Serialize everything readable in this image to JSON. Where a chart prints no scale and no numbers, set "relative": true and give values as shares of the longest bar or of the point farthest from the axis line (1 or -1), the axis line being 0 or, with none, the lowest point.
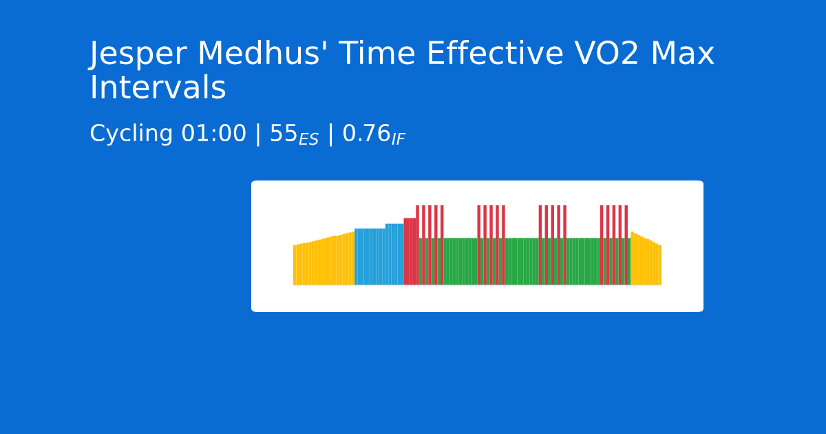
{
  "chart_data": {
    "type": "bar",
    "relative": true,
    "title": "Jesper Medhus' Time Effective VO2 Max Intervals",
    "subtitle": "Cycling 01:00 | 55$_{ES}$ | 0.76$_{IF}$",
    "categories": [
      null,
      null,
      null,
      null,
      null,
      null,
      null,
      null,
      null,
      null,
      null,
      null,
      null,
      null,
      null,
      null,
      null,
      null,
      null,
      null,
      null,
      null,
      null,
      null,
      null,
      null,
      null,
      null,
      null,
      null,
      null,
      null,
      null,
      null,
      null,
      null,
      null,
      null,
      null,
      null,
      null,
      null,
      null,
      null,
      null,
      null,
      null,
      null,
      null,
      null,
      null,
      null,
      null,
      null,
      null,
      null,
      null,
      null,
      null,
      null,
      null,
      null,
      null,
      null,
      null,
      null,
      null,
      null,
      null,
      null,
      null,
      null,
      null,
      null,
      null,
      null,
      null,
      null,
      null,
      null,
      null,
      null,
      null,
      null,
      null,
      null,
      null,
      null,
      null,
      null,
      null,
      null,
      null,
      null,
      null,
      null,
      null,
      null,
      null,
      null,
      null,
      null,
      null,
      null,
      null,
      null,
      null,
      null,
      null,
      null,
      null,
      null,
      null,
      null,
      null,
      null,
      null,
      null,
      null,
      null
    ],
    "values": [
      0.5,
      0.51,
      0.52,
      0.53,
      0.53,
      0.54,
      0.55,
      0.56,
      0.57,
      0.58,
      0.59,
      0.6,
      0.61,
      0.62,
      0.62,
      0.63,
      0.64,
      0.65,
      0.66,
      0.67,
      0.71,
      0.71,
      0.71,
      0.71,
      0.71,
      0.71,
      0.71,
      0.71,
      0.71,
      0.71,
      0.77,
      0.77,
      0.77,
      0.77,
      0.77,
      0.77,
      0.84,
      0.84,
      0.84,
      0.84,
      1,
      0.59,
      1,
      0.59,
      1,
      0.59,
      1,
      0.59,
      1,
      0.59,
      0.59,
      0.59,
      0.59,
      0.59,
      0.59,
      0.59,
      0.59,
      0.59,
      0.59,
      0.59,
      1,
      0.59,
      1,
      0.59,
      1,
      0.59,
      1,
      0.59,
      1,
      0.59,
      0.59,
      0.59,
      0.59,
      0.59,
      0.59,
      0.59,
      0.59,
      0.59,
      0.59,
      0.59,
      1,
      0.59,
      1,
      0.59,
      1,
      0.59,
      1,
      0.59,
      1,
      0.59,
      0.59,
      0.59,
      0.59,
      0.59,
      0.59,
      0.59,
      0.59,
      0.59,
      0.59,
      0.59,
      1,
      0.59,
      1,
      0.59,
      1,
      0.59,
      1,
      0.59,
      1,
      0.59,
      0.67,
      0.65,
      0.63,
      0.61,
      0.59,
      0.58,
      0.56,
      0.54,
      0.52,
      0.5
    ],
    "colors": [
      "#ffc107",
      "#ffc107",
      "#ffc107",
      "#ffc107",
      "#ffc107",
      "#ffc107",
      "#ffc107",
      "#ffc107",
      "#ffc107",
      "#ffc107",
      "#ffc107",
      "#ffc107",
      "#ffc107",
      "#ffc107",
      "#ffc107",
      "#ffc107",
      "#ffc107",
      "#ffc107",
      "#ffc107",
      "#ffc107",
      "#26a0da",
      "#26a0da",
      "#26a0da",
      "#26a0da",
      "#26a0da",
      "#26a0da",
      "#26a0da",
      "#26a0da",
      "#26a0da",
      "#26a0da",
      "#26a0da",
      "#26a0da",
      "#26a0da",
      "#26a0da",
      "#26a0da",
      "#26a0da",
      "#dc3545",
      "#dc3545",
      "#dc3545",
      "#dc3545",
      "#dc3545",
      "#28a745",
      "#dc3545",
      "#28a745",
      "#dc3545",
      "#28a745",
      "#dc3545",
      "#28a745",
      "#dc3545",
      "#28a745",
      "#28a745",
      "#28a745",
      "#28a745",
      "#28a745",
      "#28a745",
      "#28a745",
      "#28a745",
      "#28a745",
      "#28a745",
      "#28a745",
      "#dc3545",
      "#28a745",
      "#dc3545",
      "#28a745",
      "#dc3545",
      "#28a745",
      "#dc3545",
      "#28a745",
      "#dc3545",
      "#28a745",
      "#28a745",
      "#28a745",
      "#28a745",
      "#28a745",
      "#28a745",
      "#28a745",
      "#28a745",
      "#28a745",
      "#28a745",
      "#28a745",
      "#dc3545",
      "#28a745",
      "#dc3545",
      "#28a745",
      "#dc3545",
      "#28a745",
      "#dc3545",
      "#28a745",
      "#dc3545",
      "#28a745",
      "#28a745",
      "#28a745",
      "#28a745",
      "#28a745",
      "#28a745",
      "#28a745",
      "#28a745",
      "#28a745",
      "#28a745",
      "#28a745",
      "#dc3545",
      "#28a745",
      "#dc3545",
      "#28a745",
      "#dc3545",
      "#28a745",
      "#dc3545",
      "#28a745",
      "#dc3545",
      "#28a745",
      "#ffc107",
      "#ffc107",
      "#ffc107",
      "#ffc107",
      "#ffc107",
      "#ffc107",
      "#ffc107",
      "#ffc107",
      "#ffc107",
      "#ffc107"
    ]
  }
}
